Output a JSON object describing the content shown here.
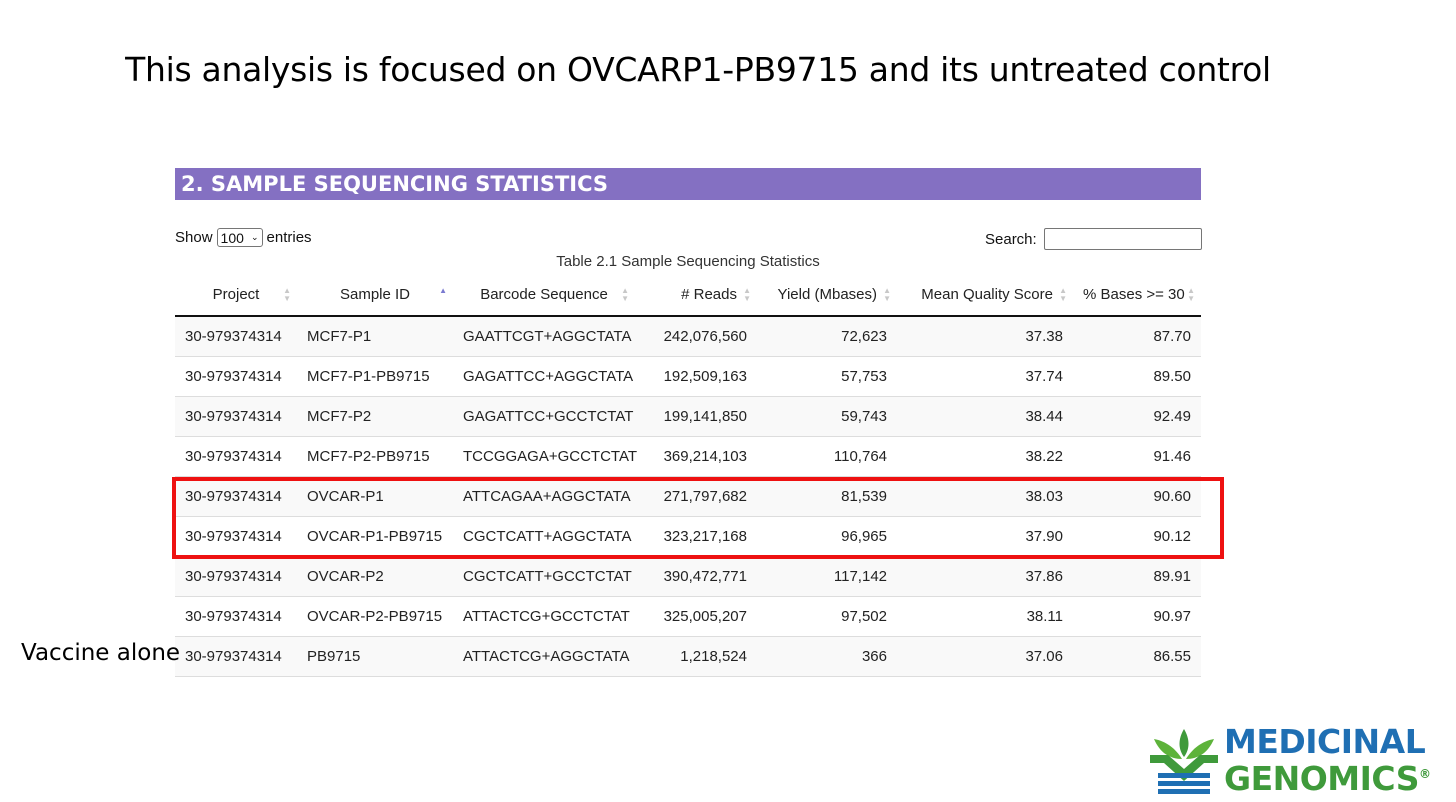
{
  "slide": {
    "title": "This analysis is focused on OVCARP1-PB9715 and its untreated control",
    "side_note": "Vaccine alone"
  },
  "section": {
    "heading": "2. SAMPLE SEQUENCING STATISTICS"
  },
  "controls": {
    "show_label": "Show",
    "entries_value": "100",
    "entries_label": "entries",
    "search_label": "Search:",
    "search_value": ""
  },
  "table": {
    "caption": "Table 2.1 Sample Sequencing Statistics",
    "headers": [
      "Project",
      "Sample ID",
      "Barcode Sequence",
      "# Reads",
      "Yield (Mbases)",
      "Mean Quality Score",
      "% Bases >= 30"
    ],
    "sorted_column": "Sample ID",
    "sort_direction": "ascending",
    "rows": [
      [
        "30-979374314",
        "MCF7-P1",
        "GAATTCGT+AGGCTATA",
        "242,076,560",
        "72,623",
        "37.38",
        "87.70"
      ],
      [
        "30-979374314",
        "MCF7-P1-PB9715",
        "GAGATTCC+AGGCTATA",
        "192,509,163",
        "57,753",
        "37.74",
        "89.50"
      ],
      [
        "30-979374314",
        "MCF7-P2",
        "GAGATTCC+GCCTCTAT",
        "199,141,850",
        "59,743",
        "38.44",
        "92.49"
      ],
      [
        "30-979374314",
        "MCF7-P2-PB9715",
        "TCCGGAGA+GCCTCTAT",
        "369,214,103",
        "110,764",
        "38.22",
        "91.46"
      ],
      [
        "30-979374314",
        "OVCAR-P1",
        "ATTCAGAA+AGGCTATA",
        "271,797,682",
        "81,539",
        "38.03",
        "90.60"
      ],
      [
        "30-979374314",
        "OVCAR-P1-PB9715",
        "CGCTCATT+AGGCTATA",
        "323,217,168",
        "96,965",
        "37.90",
        "90.12"
      ],
      [
        "30-979374314",
        "OVCAR-P2",
        "CGCTCATT+GCCTCTAT",
        "390,472,771",
        "117,142",
        "37.86",
        "89.91"
      ],
      [
        "30-979374314",
        "OVCAR-P2-PB9715",
        "ATTACTCG+GCCTCTAT",
        "325,005,207",
        "97,502",
        "38.11",
        "90.97"
      ],
      [
        "30-979374314",
        "PB9715",
        "ATTACTCG+AGGCTATA",
        "1,218,524",
        "366",
        "37.06",
        "86.55"
      ]
    ],
    "highlighted_samples": [
      "OVCAR-P1",
      "OVCAR-P1-PB9715"
    ],
    "highlight_color": "#ee1111"
  },
  "logo": {
    "line1": "MEDICINAL",
    "line2": "GENOMICS",
    "trademark": "®",
    "colors": {
      "blue": "#1f6fb3",
      "green": "#3f9a3b"
    }
  },
  "colors": {
    "banner": "#8470c2",
    "sort_active": "#7a7ad0"
  }
}
